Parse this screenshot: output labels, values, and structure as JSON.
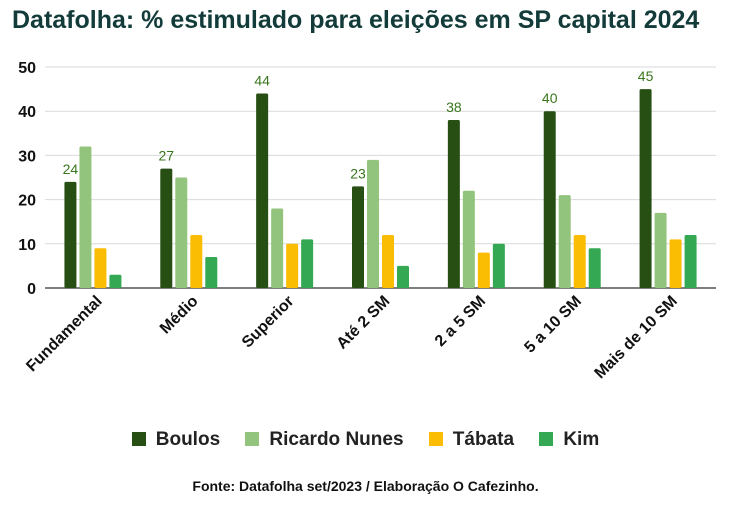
{
  "colors": {
    "Boulos": "#274e13",
    "Ricardo Nunes": "#93c47d",
    "Tábata": "#fbbc04",
    "Kim": "#34a853"
  },
  "chart_data": {
    "type": "bar",
    "title": "Datafolha: % estimulado para eleições em SP capital 2024",
    "categories": [
      "Fundamental",
      "Médio",
      "Superior",
      "Até 2 SM",
      "2 a 5 SM",
      "5 a 10 SM",
      "Mais de 10 SM"
    ],
    "series": [
      {
        "name": "Boulos",
        "values": [
          24,
          27,
          44,
          23,
          38,
          40,
          45
        ],
        "show_labels": true
      },
      {
        "name": "Ricardo Nunes",
        "values": [
          32,
          25,
          18,
          29,
          22,
          21,
          17
        ],
        "show_labels": false
      },
      {
        "name": "Tábata",
        "values": [
          9,
          12,
          10,
          12,
          8,
          12,
          11
        ],
        "show_labels": false
      },
      {
        "name": "Kim",
        "values": [
          3,
          7,
          11,
          5,
          10,
          9,
          12
        ],
        "show_labels": false
      }
    ],
    "ylim": [
      0,
      50
    ],
    "yticks": [
      0,
      10,
      20,
      30,
      40,
      50
    ],
    "xlabel": "",
    "ylabel": "",
    "grid": true,
    "legend_position": "bottom"
  },
  "source": "Fonte: Datafolha set/2023 / Elaboração O Cafezinho."
}
